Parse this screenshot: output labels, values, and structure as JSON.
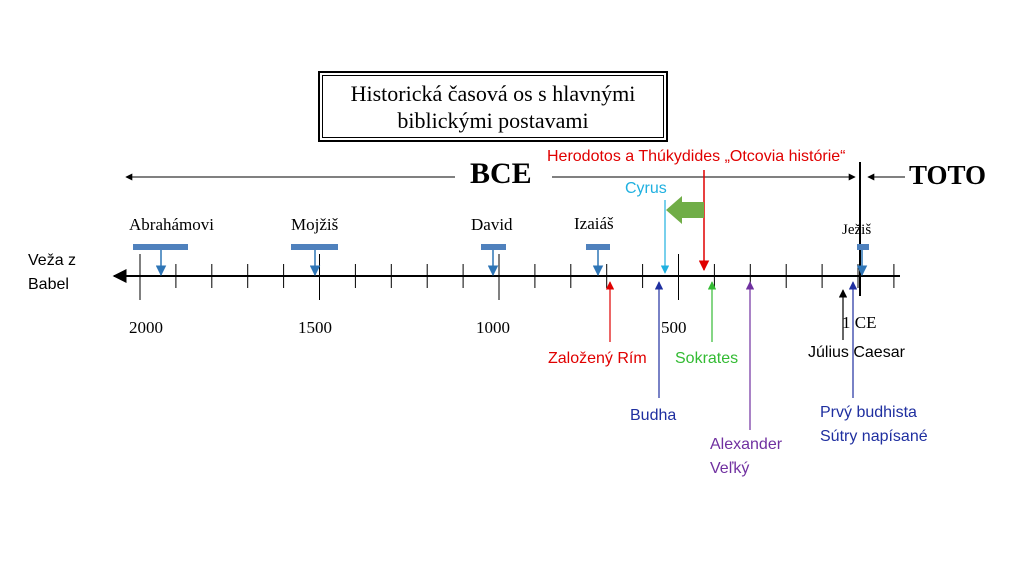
{
  "title": {
    "line1": "Historická časová os s hlavnými",
    "line2": "biblickými postavami"
  },
  "era": {
    "bce_label": "BCE",
    "toto_label": "TOTO"
  },
  "axis": {
    "left_label_line1": "Veža z",
    "left_label_line2": "Babel",
    "tick_labels": [
      "2000",
      "1500",
      "1000",
      "500",
      "1 CE"
    ]
  },
  "figures": [
    {
      "name": "Abrahámovi",
      "year": 2000
    },
    {
      "name": "Mojžiš",
      "year": 1500
    },
    {
      "name": "David",
      "year": 1000
    },
    {
      "name": "Izaiáš",
      "year": 700
    },
    {
      "name": "Ježiš",
      "year": 1
    }
  ],
  "events": {
    "herodotos": "Herodotos a Thúkydides „Otcovia histórie“",
    "cyrus": "Cyrus",
    "rim": "Založený Rím",
    "sokrates": "Sokrates",
    "budha": "Budha",
    "alexander_line1": "Alexander",
    "alexander_line2": "Veľký",
    "julius": "Július Caesar",
    "sutry_line1": "Prvý budhista",
    "sutry_line2": "Sútry napísané"
  },
  "colors": {
    "axis": "#000000",
    "figure_bar": "#4f81bd",
    "figure_arrow": "#2e75b6",
    "herodotos": "#e00000",
    "cyrus": "#1fb0e0",
    "rim": "#e00000",
    "sokrates": "#33bb33",
    "budha": "#1f2fa0",
    "alexander": "#7030a0",
    "sutry": "#1f2fa0",
    "big_arrow": "#70ad47"
  }
}
